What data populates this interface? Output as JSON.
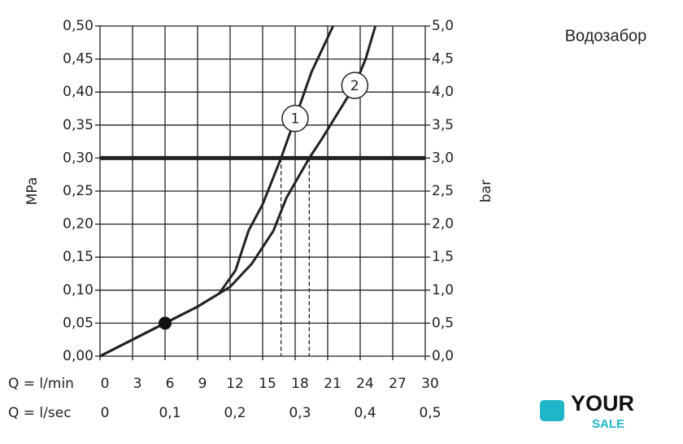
{
  "chart_data": {
    "type": "line",
    "title": "Водозабор",
    "ylabel": "MPa",
    "y2label": "bar",
    "xlabel": "Q = l/min",
    "x2label": "Q = l/sec",
    "xlim": [
      0,
      30
    ],
    "xticks": [
      0,
      3,
      6,
      9,
      12,
      15,
      18,
      21,
      24,
      27,
      30
    ],
    "x2lim": [
      0,
      0.5
    ],
    "x2ticks": [
      0,
      {
        "value": 0.1,
        "label": "0,1"
      },
      {
        "value": 0.2,
        "label": "0,2"
      },
      {
        "value": 0.3,
        "label": "0,3"
      },
      {
        "value": 0.4,
        "label": "0,4"
      },
      {
        "value": 0.5,
        "label": "0,5"
      }
    ],
    "ylim": [
      0,
      0.5
    ],
    "yticks": [
      {
        "value": 0,
        "label": "0,00"
      },
      {
        "value": 0.05,
        "label": "0,05"
      },
      {
        "value": 0.1,
        "label": "0,10"
      },
      {
        "value": 0.15,
        "label": "0,15"
      },
      {
        "value": 0.2,
        "label": "0,20"
      },
      {
        "value": 0.25,
        "label": "0,25"
      },
      {
        "value": 0.3,
        "label": "0,30"
      },
      {
        "value": 0.35,
        "label": "0,35"
      },
      {
        "value": 0.4,
        "label": "0,40"
      },
      {
        "value": 0.45,
        "label": "0,45"
      },
      {
        "value": 0.5,
        "label": "0,50"
      }
    ],
    "y2lim": [
      0,
      5
    ],
    "y2ticks": [
      {
        "value": 0,
        "label": "0,0"
      },
      {
        "value": 0.5,
        "label": "0,5"
      },
      {
        "value": 1,
        "label": "1,0"
      },
      {
        "value": 1.5,
        "label": "1,5"
      },
      {
        "value": 2,
        "label": "2,0"
      },
      {
        "value": 2.5,
        "label": "2,5"
      },
      {
        "value": 3,
        "label": "3,0"
      },
      {
        "value": 3.5,
        "label": "3,5"
      },
      {
        "value": 4,
        "label": "4,0"
      },
      {
        "value": 4.5,
        "label": "4,5"
      },
      {
        "value": 5,
        "label": "5,0"
      }
    ],
    "grid": true,
    "reference_line": 0.3,
    "dashed_x": [
      16.7,
      19.3
    ],
    "marker": {
      "x": 6,
      "y": 0.05
    },
    "series": [
      {
        "name": "1",
        "color": "#222222",
        "x": [
          0,
          6,
          9,
          11,
          12.5,
          13.7,
          15,
          16.7,
          18,
          19.5,
          21.5
        ],
        "values": [
          0,
          0.05,
          0.075,
          0.095,
          0.13,
          0.19,
          0.23,
          0.3,
          0.36,
          0.43,
          0.5
        ]
      },
      {
        "name": "2",
        "color": "#222222",
        "x": [
          0,
          6,
          9,
          12,
          14,
          16,
          17.2,
          19.3,
          20.5,
          22,
          23.5,
          24.5,
          25.4
        ],
        "values": [
          0,
          0.05,
          0.075,
          0.105,
          0.14,
          0.19,
          0.24,
          0.3,
          0.33,
          0.37,
          0.41,
          0.45,
          0.5
        ]
      }
    ]
  },
  "logo": {
    "top": "YOUR",
    "bottom": "SALE"
  }
}
